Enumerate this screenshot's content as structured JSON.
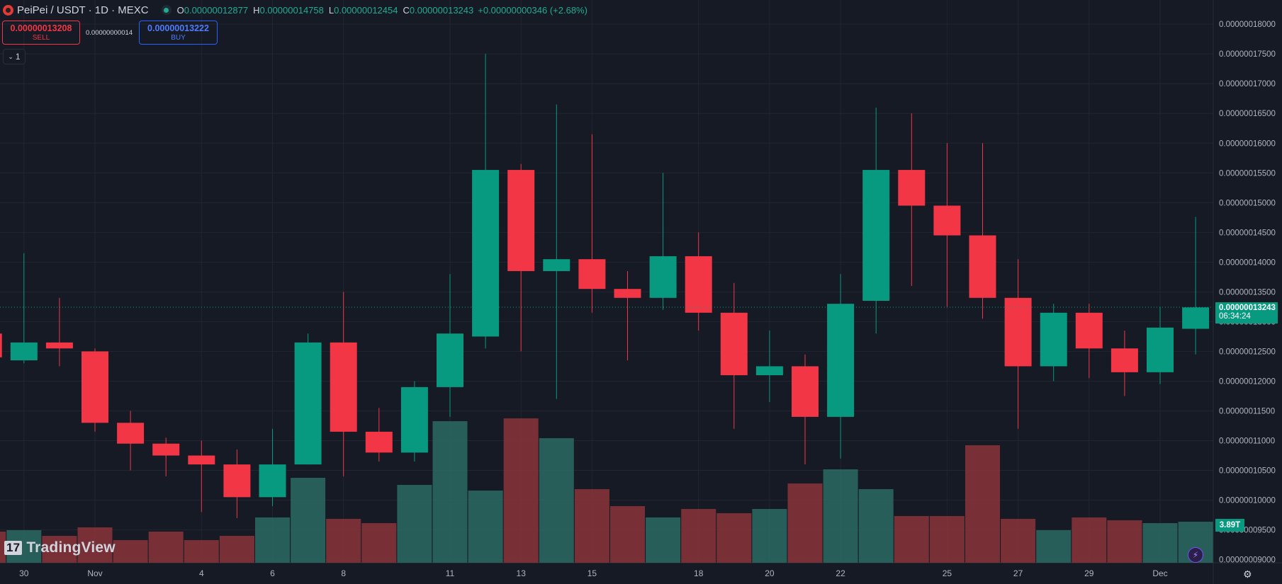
{
  "header": {
    "symbol": "PeiPei / USDT · 1D · MEXC",
    "o_label": "O",
    "o_value": "0.00000012877",
    "h_label": "H",
    "h_value": "0.00000014758",
    "l_label": "L",
    "l_value": "0.00000012454",
    "c_label": "C",
    "c_value": "0.00000013243",
    "change": "+0.00000000346 (+2.68%)"
  },
  "trade": {
    "sell_price": "0.00000013208",
    "sell_label": "SELL",
    "spread": "0.00000000014",
    "buy_price": "0.00000013222",
    "buy_label": "BUY"
  },
  "collapse_label": "1",
  "brand": "TradingView",
  "last_price_tag": {
    "price": "0.00000013243",
    "countdown": "06:34:24"
  },
  "volume_tag": "3.89T",
  "icons": {
    "bolt": "lightning-icon",
    "settings": "gear-icon",
    "logo": "tradingview-logo"
  },
  "colors": {
    "up": "#089981",
    "down": "#f23645",
    "background": "#161a25",
    "grid": "#232632"
  },
  "chart_data": {
    "type": "candlestick",
    "y_unit_scale": "1e-8",
    "ylim": [
      8.9,
      18.2
    ],
    "y_ticks": [
      "0.00000018000",
      "0.00000017500",
      "0.00000017000",
      "0.00000016500",
      "0.00000016000",
      "0.00000015500",
      "0.00000015000",
      "0.00000014500",
      "0.00000014000",
      "0.00000013500",
      "0.00000013000",
      "0.00000012500",
      "0.00000012000",
      "0.00000011500",
      "0.00000011000",
      "0.00000010500",
      "0.00000010000",
      "0.00000009500",
      "0.00000009000"
    ],
    "y_tick_values": [
      18.0,
      17.5,
      17.0,
      16.5,
      16.0,
      15.5,
      15.0,
      14.5,
      14.0,
      13.5,
      13.0,
      12.5,
      12.0,
      11.5,
      11.0,
      10.5,
      10.0,
      9.5,
      9.0
    ],
    "x_tick_labels": [
      "30",
      "Nov",
      "4",
      "6",
      "8",
      "11",
      "13",
      "15",
      "18",
      "20",
      "22",
      "25",
      "27",
      "29",
      "Dec"
    ],
    "x_tick_index": [
      1,
      3,
      6,
      8,
      10,
      13,
      15,
      17,
      20,
      22,
      24,
      27,
      29,
      31,
      33
    ],
    "candles": [
      {
        "o": 12.8,
        "h": 13.1,
        "l": 12.3,
        "c": 12.4
      },
      {
        "o": 12.35,
        "h": 14.15,
        "l": 12.3,
        "c": 12.65
      },
      {
        "o": 12.65,
        "h": 13.4,
        "l": 12.25,
        "c": 12.55
      },
      {
        "o": 12.5,
        "h": 12.55,
        "l": 11.15,
        "c": 11.3
      },
      {
        "o": 11.3,
        "h": 11.5,
        "l": 10.5,
        "c": 10.95
      },
      {
        "o": 10.95,
        "h": 11.05,
        "l": 10.4,
        "c": 10.75
      },
      {
        "o": 10.75,
        "h": 11.0,
        "l": 9.8,
        "c": 10.6
      },
      {
        "o": 10.6,
        "h": 10.85,
        "l": 9.7,
        "c": 10.05
      },
      {
        "o": 10.05,
        "h": 11.2,
        "l": 9.9,
        "c": 10.6
      },
      {
        "o": 10.6,
        "h": 12.8,
        "l": 10.6,
        "c": 12.65
      },
      {
        "o": 12.65,
        "h": 13.5,
        "l": 10.4,
        "c": 11.15
      },
      {
        "o": 11.15,
        "h": 11.55,
        "l": 10.65,
        "c": 10.8
      },
      {
        "o": 10.8,
        "h": 12.0,
        "l": 10.65,
        "c": 11.9
      },
      {
        "o": 11.9,
        "h": 13.8,
        "l": 11.4,
        "c": 12.8
      },
      {
        "o": 12.75,
        "h": 17.5,
        "l": 12.55,
        "c": 15.55
      },
      {
        "o": 15.55,
        "h": 15.65,
        "l": 12.5,
        "c": 13.85
      },
      {
        "o": 13.85,
        "h": 16.65,
        "l": 11.7,
        "c": 14.05
      },
      {
        "o": 14.05,
        "h": 16.15,
        "l": 13.15,
        "c": 13.55
      },
      {
        "o": 13.55,
        "h": 13.85,
        "l": 12.35,
        "c": 13.4
      },
      {
        "o": 13.4,
        "h": 15.5,
        "l": 13.2,
        "c": 14.1
      },
      {
        "o": 14.1,
        "h": 14.5,
        "l": 12.85,
        "c": 13.15
      },
      {
        "o": 13.15,
        "h": 13.65,
        "l": 11.2,
        "c": 12.1
      },
      {
        "o": 12.1,
        "h": 12.85,
        "l": 11.65,
        "c": 12.25
      },
      {
        "o": 12.25,
        "h": 12.45,
        "l": 10.6,
        "c": 11.4
      },
      {
        "o": 11.4,
        "h": 13.8,
        "l": 10.7,
        "c": 13.3
      },
      {
        "o": 13.35,
        "h": 16.6,
        "l": 12.8,
        "c": 15.55
      },
      {
        "o": 15.55,
        "h": 16.5,
        "l": 13.6,
        "c": 14.95
      },
      {
        "o": 14.95,
        "h": 16.0,
        "l": 13.25,
        "c": 14.45
      },
      {
        "o": 14.45,
        "h": 16.0,
        "l": 13.05,
        "c": 13.4
      },
      {
        "o": 13.4,
        "h": 14.05,
        "l": 11.2,
        "c": 12.25
      },
      {
        "o": 12.25,
        "h": 13.3,
        "l": 12.0,
        "c": 13.15
      },
      {
        "o": 13.15,
        "h": 13.3,
        "l": 12.05,
        "c": 12.55
      },
      {
        "o": 12.55,
        "h": 12.85,
        "l": 11.75,
        "c": 12.15
      },
      {
        "o": 12.15,
        "h": 13.25,
        "l": 11.95,
        "c": 12.9
      },
      {
        "o": 12.88,
        "h": 14.76,
        "l": 12.45,
        "c": 13.24
      }
    ],
    "volume_relative": [
      0.22,
      0.23,
      0.19,
      0.25,
      0.16,
      0.22,
      0.16,
      0.19,
      0.32,
      0.6,
      0.31,
      0.28,
      0.55,
      1.0,
      0.51,
      1.02,
      0.88,
      0.52,
      0.4,
      0.32,
      0.38,
      0.35,
      0.38,
      0.56,
      0.66,
      0.52,
      0.33,
      0.33,
      0.83,
      0.31,
      0.23,
      0.32,
      0.3,
      0.28,
      0.29
    ],
    "last_price": 13.243,
    "grid": true
  }
}
